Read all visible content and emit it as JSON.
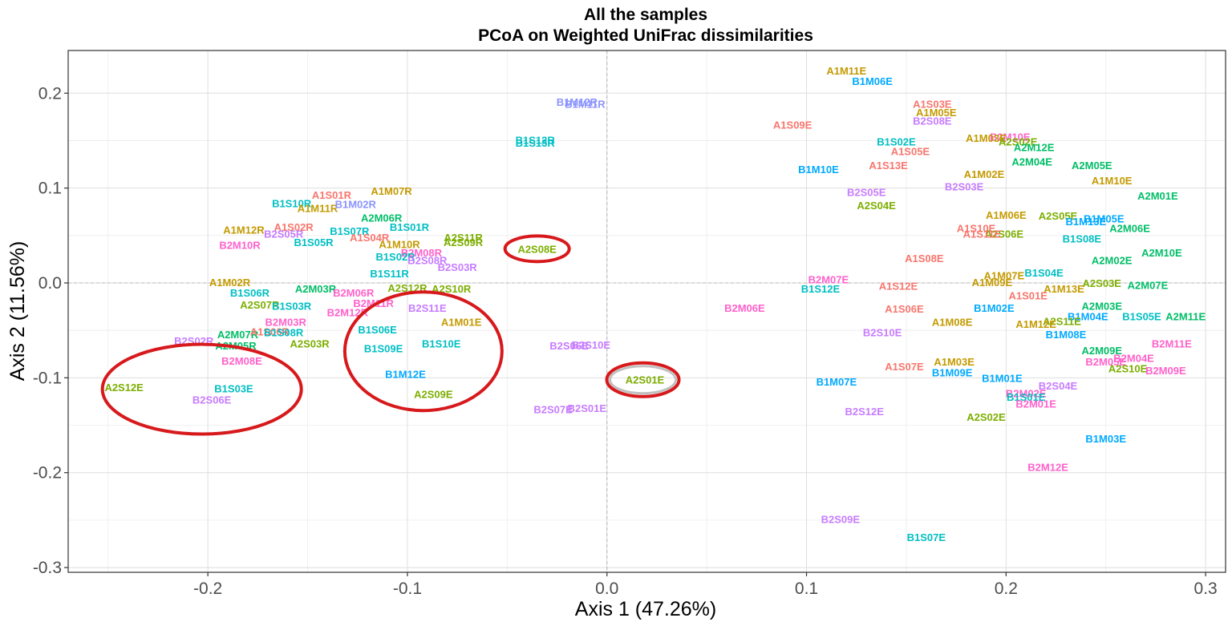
{
  "chart_data": {
    "type": "scatter",
    "title": "All the samples",
    "subtitle": "PCoA on Weighted UniFrac dissimilarities",
    "xlabel": "Axis 1 (47.26%)",
    "ylabel": "Axis 2 (11.56%)",
    "xlim": [
      -0.27,
      0.31
    ],
    "ylim": [
      -0.305,
      0.245
    ],
    "x_ticks": [
      -0.2,
      -0.1,
      0.0,
      0.1,
      0.2,
      0.3
    ],
    "x_tick_labels": [
      "-0.2",
      "-0.1",
      "0.0",
      "0.1",
      "0.2",
      "0.3"
    ],
    "y_ticks": [
      -0.3,
      -0.2,
      -0.1,
      0.0,
      0.1,
      0.2
    ],
    "y_tick_labels": [
      "-0.3",
      "-0.2",
      "-0.1",
      "0.0",
      "0.1",
      "0.2"
    ],
    "grid": true,
    "reference_lines": {
      "x": 0,
      "y": 0
    },
    "group_colors": {
      "A1S": "#F8766D",
      "A1M": "#C49A00",
      "A2S": "#7CAE00",
      "A2M": "#00BE67",
      "B1S": "#00BFC4",
      "B1M": "#00A9FF",
      "B2M": "#FF61CC",
      "B2S": "#C77CFF",
      "BxR": "#8B93FF"
    },
    "points": [
      {
        "label": "A1M11E",
        "x": 0.12,
        "y": 0.224
      },
      {
        "label": "B1M06E",
        "x": 0.133,
        "y": 0.213
      },
      {
        "label": "A1S03E",
        "x": 0.163,
        "y": 0.189
      },
      {
        "label": "A1M05E",
        "x": 0.165,
        "y": 0.18
      },
      {
        "label": "B2S08E",
        "x": 0.163,
        "y": 0.171
      },
      {
        "label": "A1S09E",
        "x": 0.093,
        "y": 0.167
      },
      {
        "label": "B2M10E",
        "x": 0.202,
        "y": 0.154
      },
      {
        "label": "A1M03E",
        "x": 0.19,
        "y": 0.153
      },
      {
        "label": "A2S02E",
        "x": 0.206,
        "y": 0.149
      },
      {
        "label": "A2M12E",
        "x": 0.214,
        "y": 0.143
      },
      {
        "label": "B1S02E",
        "x": 0.145,
        "y": 0.149
      },
      {
        "label": "A1S05E",
        "x": 0.152,
        "y": 0.139
      },
      {
        "label": "A2M04E",
        "x": 0.213,
        "y": 0.128
      },
      {
        "label": "A2M05E",
        "x": 0.243,
        "y": 0.124
      },
      {
        "label": "A1S13E",
        "x": 0.141,
        "y": 0.124
      },
      {
        "label": "B1M10E",
        "x": 0.106,
        "y": 0.12
      },
      {
        "label": "A1M02E",
        "x": 0.189,
        "y": 0.115
      },
      {
        "label": "A1M10E",
        "x": 0.253,
        "y": 0.108
      },
      {
        "label": "B2S03E",
        "x": 0.179,
        "y": 0.102
      },
      {
        "label": "B2S05E",
        "x": 0.13,
        "y": 0.096
      },
      {
        "label": "A2M01E",
        "x": 0.276,
        "y": 0.092
      },
      {
        "label": "A2S04E",
        "x": 0.135,
        "y": 0.082
      },
      {
        "label": "A1M06E",
        "x": 0.2,
        "y": 0.072
      },
      {
        "label": "A2S05E",
        "x": 0.226,
        "y": 0.071
      },
      {
        "label": "B1M05E",
        "x": 0.249,
        "y": 0.068
      },
      {
        "label": "B1M13E",
        "x": 0.24,
        "y": 0.065
      },
      {
        "label": "A1S10E",
        "x": 0.185,
        "y": 0.058
      },
      {
        "label": "A2M06E",
        "x": 0.262,
        "y": 0.058
      },
      {
        "label": "A2S06E",
        "x": 0.199,
        "y": 0.052
      },
      {
        "label": "A1S11E",
        "x": 0.188,
        "y": 0.052
      },
      {
        "label": "B1S08E",
        "x": 0.238,
        "y": 0.047
      },
      {
        "label": "A2M10E",
        "x": 0.278,
        "y": 0.032
      },
      {
        "label": "A1S08E",
        "x": 0.159,
        "y": 0.026
      },
      {
        "label": "A2M02E",
        "x": 0.253,
        "y": 0.024
      },
      {
        "label": "B1S04E",
        "x": 0.219,
        "y": 0.011
      },
      {
        "label": "A1M07E",
        "x": 0.199,
        "y": 0.008
      },
      {
        "label": "B2M07E",
        "x": 0.111,
        "y": 0.004
      },
      {
        "label": "A1M09E",
        "x": 0.193,
        "y": 0.001
      },
      {
        "label": "A2S03E",
        "x": 0.248,
        "y": 0.0
      },
      {
        "label": "A2M07E",
        "x": 0.271,
        "y": -0.002
      },
      {
        "label": "A1S12E",
        "x": 0.146,
        "y": -0.003
      },
      {
        "label": "B1S12E",
        "x": 0.107,
        "y": -0.006
      },
      {
        "label": "A1M13E",
        "x": 0.229,
        "y": -0.006
      },
      {
        "label": "A1S01E",
        "x": 0.211,
        "y": -0.013
      },
      {
        "label": "B2M06E",
        "x": 0.069,
        "y": -0.026
      },
      {
        "label": "A2M03E",
        "x": 0.248,
        "y": -0.024
      },
      {
        "label": "B1M02E",
        "x": 0.194,
        "y": -0.026
      },
      {
        "label": "A1S06E",
        "x": 0.149,
        "y": -0.027
      },
      {
        "label": "B1M04E",
        "x": 0.241,
        "y": -0.035
      },
      {
        "label": "B1S05E",
        "x": 0.268,
        "y": -0.035
      },
      {
        "label": "A2M11E",
        "x": 0.29,
        "y": -0.035
      },
      {
        "label": "A2S11E",
        "x": 0.228,
        "y": -0.04
      },
      {
        "label": "A1M12E",
        "x": 0.215,
        "y": -0.043
      },
      {
        "label": "A1M08E",
        "x": 0.173,
        "y": -0.041
      },
      {
        "label": "B2S10E",
        "x": 0.138,
        "y": -0.052
      },
      {
        "label": "B1M08E",
        "x": 0.23,
        "y": -0.054
      },
      {
        "label": "B2M11E",
        "x": 0.283,
        "y": -0.064
      },
      {
        "label": "A2M09E",
        "x": 0.248,
        "y": -0.071
      },
      {
        "label": "B2M04E",
        "x": 0.264,
        "y": -0.079
      },
      {
        "label": "B2M05E",
        "x": 0.25,
        "y": -0.083
      },
      {
        "label": "A1M03E",
        "x": 0.174,
        "y": -0.083
      },
      {
        "label": "A1S07E",
        "x": 0.149,
        "y": -0.088
      },
      {
        "label": "A2S10E",
        "x": 0.261,
        "y": -0.09
      },
      {
        "label": "B2M09E",
        "x": 0.28,
        "y": -0.092
      },
      {
        "label": "B1M09E",
        "x": 0.173,
        "y": -0.094
      },
      {
        "label": "B1M01E",
        "x": 0.198,
        "y": -0.1
      },
      {
        "label": "B1M07E",
        "x": 0.115,
        "y": -0.104
      },
      {
        "label": "B2S04E",
        "x": 0.226,
        "y": -0.108
      },
      {
        "label": "B2M02E",
        "x": 0.21,
        "y": -0.116
      },
      {
        "label": "B1S01E",
        "x": 0.21,
        "y": -0.12
      },
      {
        "label": "B2M01E",
        "x": 0.215,
        "y": -0.127
      },
      {
        "label": "B2S12E",
        "x": 0.129,
        "y": -0.135
      },
      {
        "label": "A2S02E",
        "x": 0.19,
        "y": -0.141
      },
      {
        "label": "B1M03E",
        "x": 0.25,
        "y": -0.164
      },
      {
        "label": "B2M12E",
        "x": 0.221,
        "y": -0.194
      },
      {
        "label": "B2S09E",
        "x": 0.117,
        "y": -0.249
      },
      {
        "label": "B1S07E",
        "x": 0.16,
        "y": -0.268
      },
      {
        "label": "B1M12R",
        "x": -0.015,
        "y": 0.191
      },
      {
        "label": "B1M11R",
        "x": -0.011,
        "y": 0.189
      },
      {
        "label": "B1S12R",
        "x": -0.036,
        "y": 0.151
      },
      {
        "label": "B1S13R",
        "x": -0.036,
        "y": 0.148
      },
      {
        "label": "A2S08E",
        "x": -0.035,
        "y": 0.036
      },
      {
        "label": "A2S01E",
        "x": 0.019,
        "y": -0.102
      },
      {
        "label": "B2S11E",
        "x": -0.09,
        "y": -0.026
      },
      {
        "label": "A1M01E",
        "x": -0.073,
        "y": -0.041
      },
      {
        "label": "B1S06E",
        "x": -0.115,
        "y": -0.049
      },
      {
        "label": "B1S09E",
        "x": -0.112,
        "y": -0.069
      },
      {
        "label": "B1S10E",
        "x": -0.083,
        "y": -0.064
      },
      {
        "label": "B1M12E",
        "x": -0.101,
        "y": -0.096
      },
      {
        "label": "A2S09E",
        "x": -0.087,
        "y": -0.117
      },
      {
        "label": "B2S06E",
        "x": -0.019,
        "y": -0.066
      },
      {
        "label": "B2S10E",
        "x": -0.008,
        "y": -0.065
      },
      {
        "label": "B2S07E",
        "x": -0.027,
        "y": -0.133
      },
      {
        "label": "B2S01E",
        "x": -0.01,
        "y": -0.132
      },
      {
        "label": "A2S12E",
        "x": -0.242,
        "y": -0.11
      },
      {
        "label": "B1S03E",
        "x": -0.187,
        "y": -0.111
      },
      {
        "label": "B2S06E",
        "x": -0.198,
        "y": -0.123
      },
      {
        "label": "B2S02R",
        "x": -0.207,
        "y": -0.061
      },
      {
        "label": "B2M08E",
        "x": -0.183,
        "y": -0.082
      },
      {
        "label": "A2M07R",
        "x": -0.185,
        "y": -0.054
      },
      {
        "label": "A2M05R",
        "x": -0.186,
        "y": -0.066
      },
      {
        "label": "A1S06R",
        "x": -0.169,
        "y": -0.051
      },
      {
        "label": "B1S08R",
        "x": -0.162,
        "y": -0.052
      },
      {
        "label": "A2S03R",
        "x": -0.149,
        "y": -0.064
      },
      {
        "label": "A2S07R",
        "x": -0.174,
        "y": -0.023
      },
      {
        "label": "B1S03R",
        "x": -0.158,
        "y": -0.024
      },
      {
        "label": "B2M03R",
        "x": -0.161,
        "y": -0.041
      },
      {
        "label": "B2M12R",
        "x": -0.13,
        "y": -0.031
      },
      {
        "label": "B2M11R",
        "x": -0.117,
        "y": -0.021
      },
      {
        "label": "A1M02R",
        "x": -0.189,
        "y": 0.001
      },
      {
        "label": "B1S10R",
        "x": -0.158,
        "y": 0.084
      },
      {
        "label": "A1S01R",
        "x": -0.138,
        "y": 0.093
      },
      {
        "label": "A1M07R",
        "x": -0.108,
        "y": 0.097
      },
      {
        "label": "A1M11R",
        "x": -0.145,
        "y": 0.079
      },
      {
        "label": "B1M02R",
        "x": -0.126,
        "y": 0.083
      },
      {
        "label": "A2M06R",
        "x": -0.113,
        "y": 0.069
      },
      {
        "label": "B1S01R",
        "x": -0.099,
        "y": 0.059
      },
      {
        "label": "A1M12R",
        "x": -0.182,
        "y": 0.056
      },
      {
        "label": "A1S02R",
        "x": -0.157,
        "y": 0.059
      },
      {
        "label": "B2S05R",
        "x": -0.162,
        "y": 0.052
      },
      {
        "label": "B1S07R",
        "x": -0.129,
        "y": 0.055
      },
      {
        "label": "A1S04R",
        "x": -0.119,
        "y": 0.048
      },
      {
        "label": "A2S11R",
        "x": -0.072,
        "y": 0.048
      },
      {
        "label": "A2S09R",
        "x": -0.072,
        "y": 0.043
      },
      {
        "label": "B2M10R",
        "x": -0.184,
        "y": 0.04
      },
      {
        "label": "B1S05R",
        "x": -0.147,
        "y": 0.043
      },
      {
        "label": "A1M10R",
        "x": -0.104,
        "y": 0.041
      },
      {
        "label": "B2M08R",
        "x": -0.093,
        "y": 0.032
      },
      {
        "label": "B1S02R",
        "x": -0.106,
        "y": 0.028
      },
      {
        "label": "B2S08R",
        "x": -0.09,
        "y": 0.024
      },
      {
        "label": "B2S03R",
        "x": -0.075,
        "y": 0.017
      },
      {
        "label": "B1S11R",
        "x": -0.109,
        "y": 0.01
      },
      {
        "label": "A2S12R",
        "x": -0.1,
        "y": -0.005
      },
      {
        "label": "A2S10R",
        "x": -0.078,
        "y": -0.006
      },
      {
        "label": "A2M03R",
        "x": -0.146,
        "y": -0.006
      },
      {
        "label": "B1S06R",
        "x": -0.179,
        "y": -0.01
      },
      {
        "label": "B2M06R",
        "x": -0.127,
        "y": -0.01
      }
    ],
    "highlight_ellipses": 4
  }
}
